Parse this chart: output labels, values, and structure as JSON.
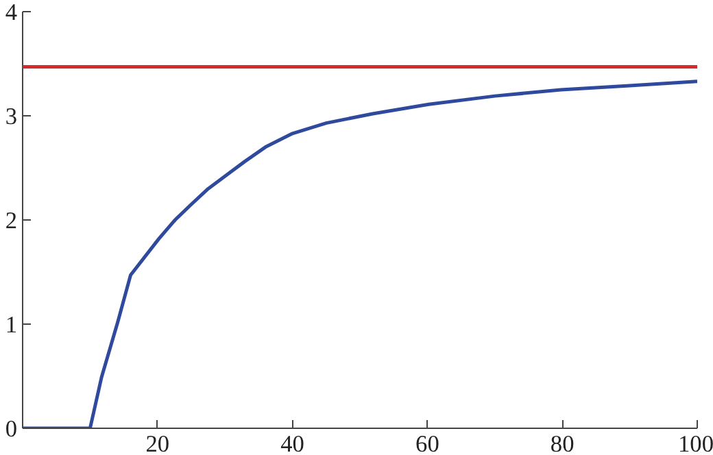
{
  "chart_data": {
    "type": "line",
    "x": [
      0,
      10,
      11.7,
      14.1,
      16,
      20.2,
      22.6,
      25,
      27.5,
      32.9,
      36,
      40,
      45,
      51.9,
      60.2,
      70,
      79.8,
      90,
      100
    ],
    "series": [
      {
        "color": "#2f4a9c",
        "values": [
          0,
          0,
          0.49,
          1.02,
          1.47,
          1.82,
          2.0,
          2.15,
          2.3,
          2.56,
          2.7,
          2.83,
          2.93,
          3.02,
          3.11,
          3.19,
          3.25,
          3.29,
          3.33
        ]
      }
    ],
    "ref_lines": [
      {
        "axis": "y",
        "value": 3.47,
        "color": "#d42a2a"
      }
    ],
    "xlim": [
      0,
      100
    ],
    "ylim": [
      0,
      4
    ],
    "xticks": [
      20,
      40,
      60,
      80,
      100
    ],
    "yticks": [
      0,
      1,
      2,
      3,
      4
    ],
    "grid": false,
    "marker": "none",
    "line_style": "solid"
  }
}
